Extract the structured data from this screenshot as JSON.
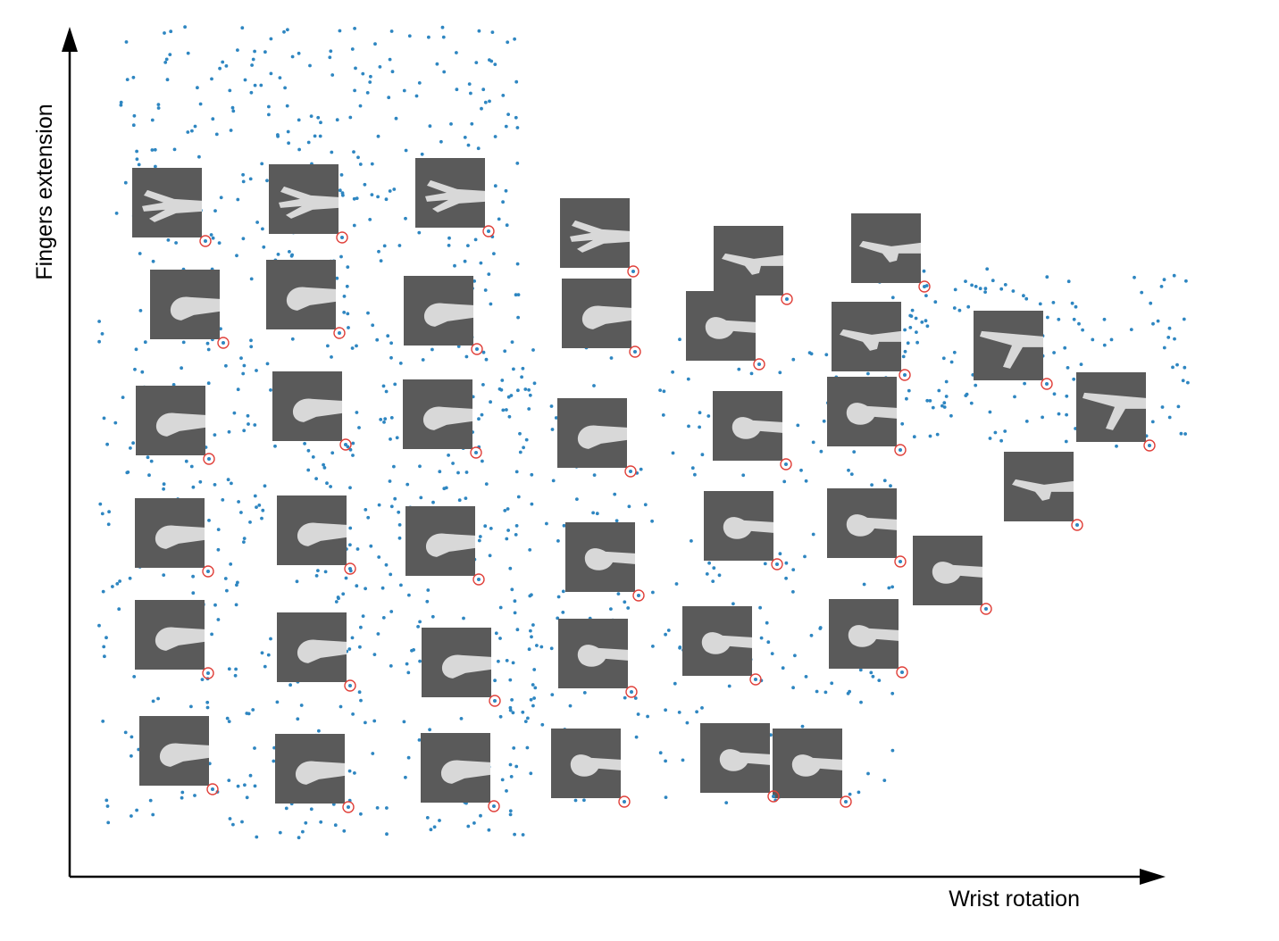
{
  "chart_data": {
    "type": "scatter",
    "xlabel": "Wrist rotation",
    "ylabel": "Fingers extension",
    "grid": false,
    "legend": "none",
    "point_color": "#2e86c1",
    "marker_color": "#e0403a",
    "thumbnail_colors": {
      "background": "#5a5a5a",
      "hand": "#d8d8d8"
    },
    "ticks_shown": false,
    "dense_regions": [
      {
        "name": "upper-left cloud",
        "x_range": [
          130,
          580
        ],
        "y_range": [
          30,
          320
        ],
        "count": 260
      },
      {
        "name": "left body",
        "x_range": [
          110,
          600
        ],
        "y_range": [
          320,
          940
        ],
        "count": 520
      },
      {
        "name": "middle band",
        "x_range": [
          560,
          1000
        ],
        "y_range": [
          380,
          900
        ],
        "count": 260
      },
      {
        "name": "right band",
        "x_range": [
          950,
          1330
        ],
        "y_range": [
          300,
          500
        ],
        "count": 170
      }
    ],
    "thumbnails": [
      {
        "pose": "open-hand",
        "marker": [
          230,
          270
        ]
      },
      {
        "pose": "open-hand",
        "marker": [
          383,
          266
        ]
      },
      {
        "pose": "open-hand-side",
        "marker": [
          547,
          259
        ]
      },
      {
        "pose": "open-hand-side",
        "marker": [
          709,
          304
        ]
      },
      {
        "pose": "flat-hand",
        "marker": [
          881,
          335
        ]
      },
      {
        "pose": "flat-hand",
        "marker": [
          1035,
          321
        ]
      },
      {
        "pose": "fist-thumb",
        "marker": [
          250,
          384
        ]
      },
      {
        "pose": "half-open",
        "marker": [
          380,
          373
        ]
      },
      {
        "pose": "fist",
        "marker": [
          534,
          391
        ]
      },
      {
        "pose": "fist",
        "marker": [
          711,
          394
        ]
      },
      {
        "pose": "pinch-open",
        "marker": [
          850,
          408
        ]
      },
      {
        "pose": "half-flat",
        "marker": [
          1013,
          420
        ]
      },
      {
        "pose": "thumb-out",
        "marker": [
          1172,
          430
        ]
      },
      {
        "pose": "fist-thumb",
        "marker": [
          234,
          514
        ]
      },
      {
        "pose": "fist",
        "marker": [
          387,
          498
        ]
      },
      {
        "pose": "fist",
        "marker": [
          533,
          507
        ]
      },
      {
        "pose": "fist",
        "marker": [
          706,
          528
        ]
      },
      {
        "pose": "pinch-open",
        "marker": [
          880,
          520
        ]
      },
      {
        "pose": "pinch-open",
        "marker": [
          1008,
          504
        ]
      },
      {
        "pose": "thumb-out",
        "marker": [
          1287,
          499
        ]
      },
      {
        "pose": "fist",
        "marker": [
          233,
          640
        ]
      },
      {
        "pose": "fist",
        "marker": [
          392,
          637
        ]
      },
      {
        "pose": "fist",
        "marker": [
          536,
          649
        ]
      },
      {
        "pose": "ok-sign",
        "marker": [
          715,
          667
        ]
      },
      {
        "pose": "ok-sign",
        "marker": [
          870,
          632
        ]
      },
      {
        "pose": "ok-sign",
        "marker": [
          1008,
          629
        ]
      },
      {
        "pose": "half-flat",
        "marker": [
          1206,
          588
        ]
      },
      {
        "pose": "ok-sign",
        "marker": [
          1104,
          682
        ]
      },
      {
        "pose": "fist",
        "marker": [
          233,
          754
        ]
      },
      {
        "pose": "fist",
        "marker": [
          392,
          768
        ]
      },
      {
        "pose": "fist-pinch",
        "marker": [
          554,
          785
        ]
      },
      {
        "pose": "ok-sign",
        "marker": [
          707,
          775
        ]
      },
      {
        "pose": "ok-sign",
        "marker": [
          846,
          761
        ]
      },
      {
        "pose": "ok-sign",
        "marker": [
          1010,
          753
        ]
      },
      {
        "pose": "fist",
        "marker": [
          238,
          884
        ]
      },
      {
        "pose": "fist",
        "marker": [
          390,
          904
        ]
      },
      {
        "pose": "fist-pinch",
        "marker": [
          553,
          903
        ]
      },
      {
        "pose": "ok-sign",
        "marker": [
          699,
          898
        ]
      },
      {
        "pose": "ok-sign",
        "marker": [
          866,
          892
        ]
      },
      {
        "pose": "ok-sign",
        "marker": [
          947,
          898
        ]
      }
    ]
  }
}
